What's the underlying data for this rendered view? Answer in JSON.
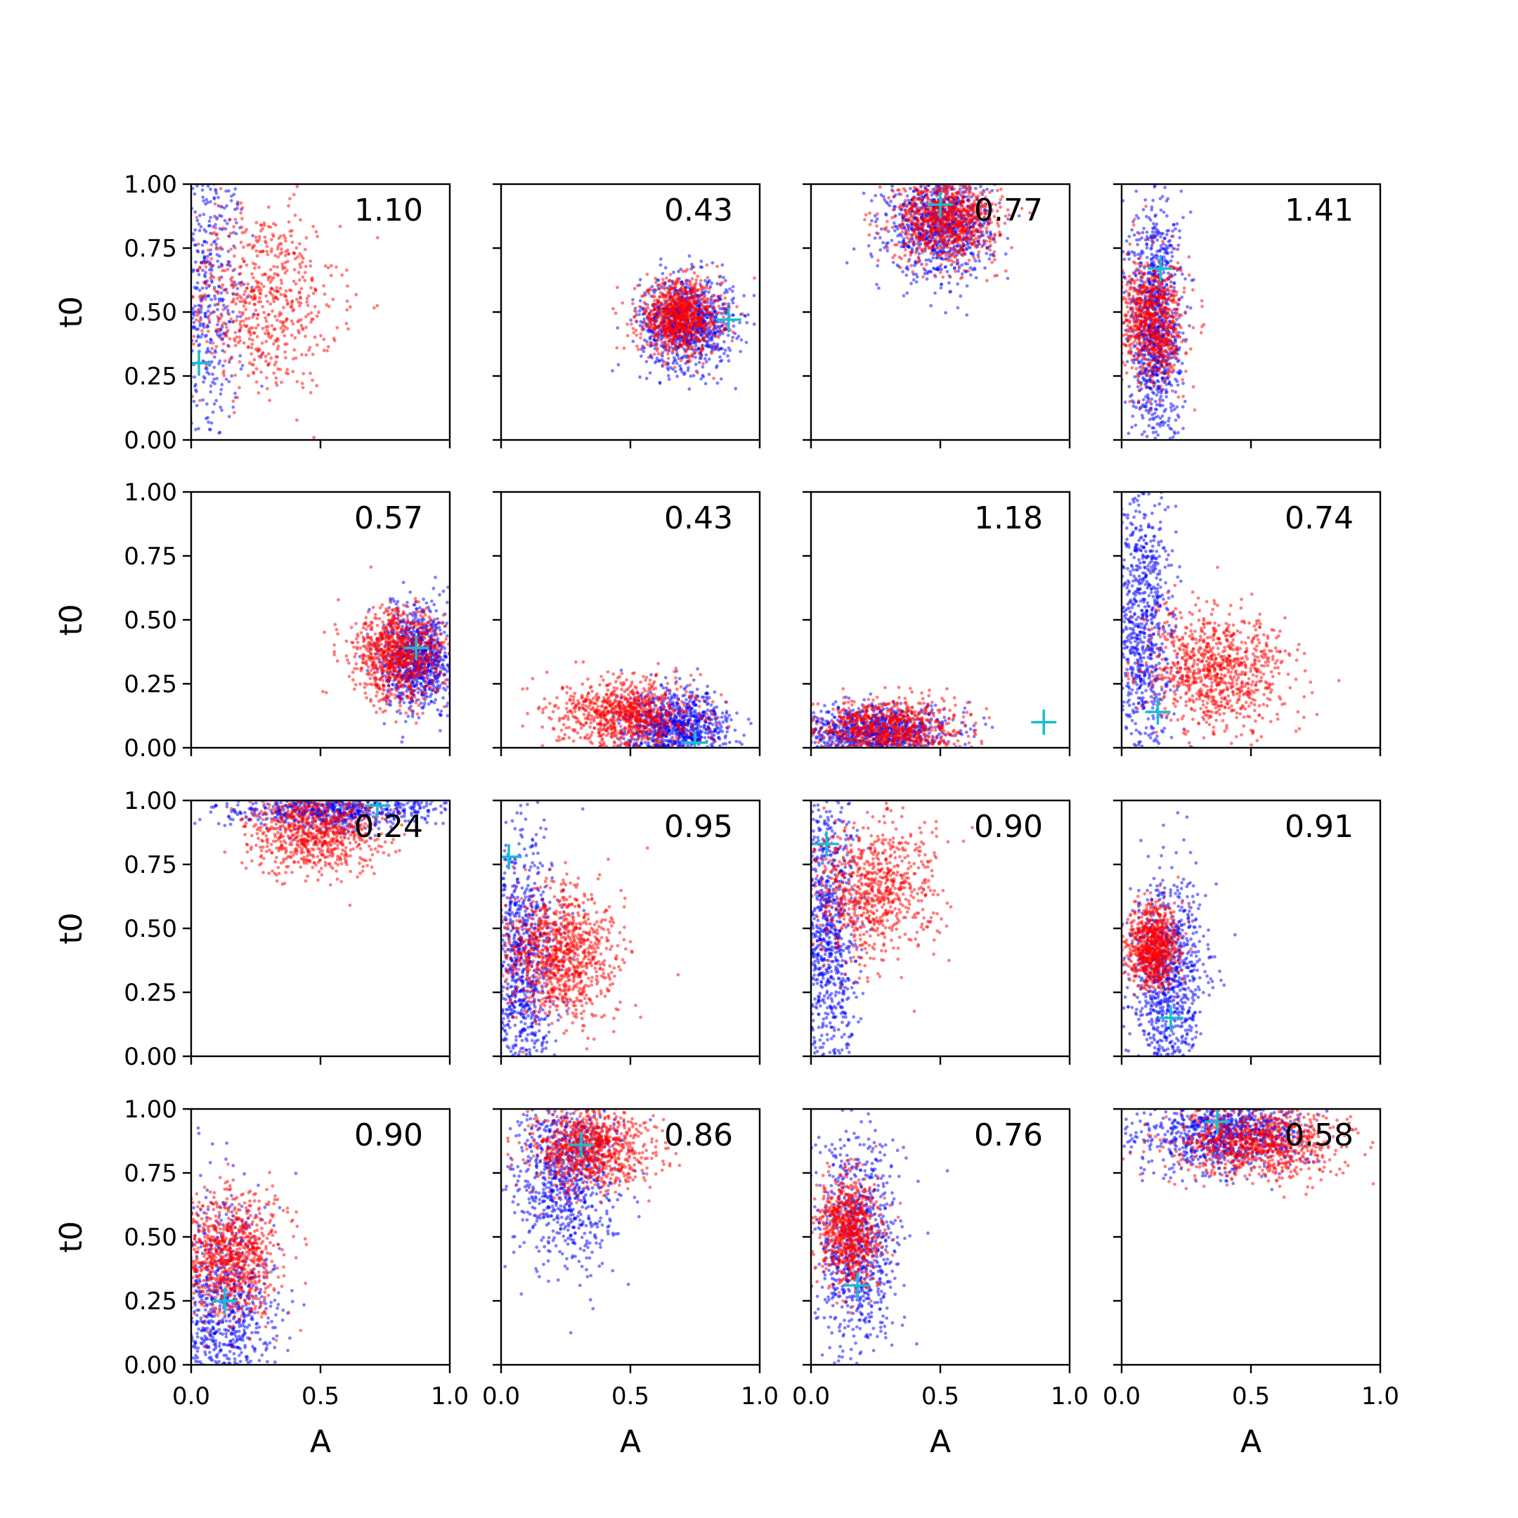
{
  "figure": {
    "x_axis_label": "A",
    "y_axis_label": "t0",
    "colors": {
      "series_1": "#0000ff",
      "series_2": "#ff0000",
      "marker": "#17becf"
    }
  },
  "chart_data": [
    {
      "type": "scatter",
      "value_label": "1.10",
      "marker": {
        "x": 0.03,
        "y": 0.3
      },
      "blue": {
        "cx": 0.05,
        "cy": 0.55,
        "sx": 0.08,
        "sy": 0.3,
        "n": 520
      },
      "red": {
        "cx": 0.27,
        "cy": 0.55,
        "sx": 0.15,
        "sy": 0.18,
        "n": 650
      },
      "xlim": [
        0,
        1
      ],
      "ylim": [
        0,
        1
      ]
    },
    {
      "type": "scatter",
      "value_label": "0.43",
      "marker": {
        "x": 0.88,
        "y": 0.47
      },
      "blue": {
        "cx": 0.72,
        "cy": 0.46,
        "sx": 0.09,
        "sy": 0.09,
        "n": 900
      },
      "red": {
        "cx": 0.69,
        "cy": 0.48,
        "sx": 0.08,
        "sy": 0.07,
        "n": 900
      },
      "xlim": [
        0,
        1
      ],
      "ylim": [
        0,
        1
      ]
    },
    {
      "type": "scatter",
      "value_label": "0.77",
      "marker": {
        "x": 0.5,
        "y": 0.92
      },
      "blue": {
        "cx": 0.5,
        "cy": 0.84,
        "sx": 0.1,
        "sy": 0.1,
        "n": 900
      },
      "red": {
        "cx": 0.52,
        "cy": 0.86,
        "sx": 0.1,
        "sy": 0.08,
        "n": 900
      },
      "xlim": [
        0,
        1
      ],
      "ylim": [
        0,
        1
      ]
    },
    {
      "type": "scatter",
      "value_label": "1.41",
      "marker": {
        "x": 0.15,
        "y": 0.67
      },
      "blue": {
        "cx": 0.13,
        "cy": 0.45,
        "sx": 0.05,
        "sy": 0.24,
        "n": 1000
      },
      "red": {
        "cx": 0.12,
        "cy": 0.46,
        "sx": 0.06,
        "sy": 0.12,
        "n": 800
      },
      "xlim": [
        0,
        1
      ],
      "ylim": [
        0,
        1
      ]
    },
    {
      "type": "scatter",
      "value_label": "0.57",
      "marker": {
        "x": 0.87,
        "y": 0.39
      },
      "blue": {
        "cx": 0.88,
        "cy": 0.35,
        "sx": 0.07,
        "sy": 0.1,
        "n": 900
      },
      "red": {
        "cx": 0.8,
        "cy": 0.36,
        "sx": 0.09,
        "sy": 0.09,
        "n": 900
      },
      "xlim": [
        0,
        1
      ],
      "ylim": [
        0,
        1
      ]
    },
    {
      "type": "scatter",
      "value_label": "0.43",
      "marker": {
        "x": 0.75,
        "y": 0.02
      },
      "blue": {
        "cx": 0.68,
        "cy": 0.08,
        "sx": 0.1,
        "sy": 0.07,
        "n": 900
      },
      "red": {
        "cx": 0.49,
        "cy": 0.13,
        "sx": 0.13,
        "sy": 0.07,
        "n": 900
      },
      "xlim": [
        0,
        1
      ],
      "ylim": [
        0,
        1
      ]
    },
    {
      "type": "scatter",
      "value_label": "1.18",
      "marker": {
        "x": 0.9,
        "y": 0.1
      },
      "blue": {
        "cx": 0.25,
        "cy": 0.06,
        "sx": 0.15,
        "sy": 0.05,
        "n": 900
      },
      "red": {
        "cx": 0.3,
        "cy": 0.07,
        "sx": 0.14,
        "sy": 0.06,
        "n": 900
      },
      "xlim": [
        0,
        1
      ],
      "ylim": [
        0,
        1
      ]
    },
    {
      "type": "scatter",
      "value_label": "0.74",
      "marker": {
        "x": 0.14,
        "y": 0.14
      },
      "blue": {
        "cx": 0.08,
        "cy": 0.45,
        "sx": 0.06,
        "sy": 0.3,
        "n": 800
      },
      "red": {
        "cx": 0.37,
        "cy": 0.3,
        "sx": 0.14,
        "sy": 0.12,
        "n": 900
      },
      "xlim": [
        0,
        1
      ],
      "ylim": [
        0,
        1
      ]
    },
    {
      "type": "scatter",
      "value_label": "0.24",
      "marker": {
        "x": 0.72,
        "y": 0.98
      },
      "blue": {
        "cx": 0.55,
        "cy": 0.97,
        "sx": 0.2,
        "sy": 0.04,
        "n": 800
      },
      "red": {
        "cx": 0.48,
        "cy": 0.88,
        "sx": 0.13,
        "sy": 0.08,
        "n": 800
      },
      "xlim": [
        0,
        1
      ],
      "ylim": [
        0,
        1
      ]
    },
    {
      "type": "scatter",
      "value_label": "0.95",
      "marker": {
        "x": 0.03,
        "y": 0.78
      },
      "blue": {
        "cx": 0.08,
        "cy": 0.35,
        "sx": 0.07,
        "sy": 0.26,
        "n": 900
      },
      "red": {
        "cx": 0.22,
        "cy": 0.4,
        "sx": 0.11,
        "sy": 0.13,
        "n": 1000
      },
      "xlim": [
        0,
        1
      ],
      "ylim": [
        0,
        1
      ]
    },
    {
      "type": "scatter",
      "value_label": "0.90",
      "marker": {
        "x": 0.06,
        "y": 0.83
      },
      "blue": {
        "cx": 0.06,
        "cy": 0.45,
        "sx": 0.06,
        "sy": 0.3,
        "n": 900
      },
      "red": {
        "cx": 0.23,
        "cy": 0.64,
        "sx": 0.12,
        "sy": 0.14,
        "n": 800
      },
      "xlim": [
        0,
        1
      ],
      "ylim": [
        0,
        1
      ]
    },
    {
      "type": "scatter",
      "value_label": "0.91",
      "marker": {
        "x": 0.19,
        "y": 0.15
      },
      "blue": {
        "cx": 0.18,
        "cy": 0.3,
        "sx": 0.07,
        "sy": 0.2,
        "n": 900
      },
      "red": {
        "cx": 0.12,
        "cy": 0.43,
        "sx": 0.05,
        "sy": 0.08,
        "n": 800
      },
      "xlim": [
        0,
        1
      ],
      "ylim": [
        0,
        1
      ]
    },
    {
      "type": "scatter",
      "value_label": "0.90",
      "marker": {
        "x": 0.13,
        "y": 0.25
      },
      "blue": {
        "cx": 0.12,
        "cy": 0.2,
        "sx": 0.1,
        "sy": 0.22,
        "n": 900
      },
      "red": {
        "cx": 0.15,
        "cy": 0.43,
        "sx": 0.1,
        "sy": 0.12,
        "n": 900
      },
      "xlim": [
        0,
        1
      ],
      "ylim": [
        0,
        1
      ]
    },
    {
      "type": "scatter",
      "value_label": "0.86",
      "marker": {
        "x": 0.31,
        "y": 0.86
      },
      "blue": {
        "cx": 0.25,
        "cy": 0.75,
        "sx": 0.1,
        "sy": 0.18,
        "n": 900
      },
      "red": {
        "cx": 0.35,
        "cy": 0.85,
        "sx": 0.11,
        "sy": 0.09,
        "n": 900
      },
      "xlim": [
        0,
        1
      ],
      "ylim": [
        0,
        1
      ]
    },
    {
      "type": "scatter",
      "value_label": "0.76",
      "marker": {
        "x": 0.18,
        "y": 0.31
      },
      "blue": {
        "cx": 0.18,
        "cy": 0.45,
        "sx": 0.08,
        "sy": 0.2,
        "n": 800
      },
      "red": {
        "cx": 0.15,
        "cy": 0.52,
        "sx": 0.06,
        "sy": 0.11,
        "n": 800
      },
      "xlim": [
        0,
        1
      ],
      "ylim": [
        0,
        1
      ]
    },
    {
      "type": "scatter",
      "value_label": "0.58",
      "marker": {
        "x": 0.37,
        "y": 0.95
      },
      "blue": {
        "cx": 0.4,
        "cy": 0.9,
        "sx": 0.16,
        "sy": 0.07,
        "n": 900
      },
      "red": {
        "cx": 0.52,
        "cy": 0.87,
        "sx": 0.16,
        "sy": 0.07,
        "n": 900
      },
      "xlim": [
        0,
        1
      ],
      "ylim": [
        0,
        1
      ]
    }
  ],
  "axes": {
    "x_ticks": [
      "0.0",
      "0.5",
      "1.0"
    ],
    "y_ticks": [
      "0.00",
      "0.25",
      "0.50",
      "0.75",
      "1.00"
    ]
  }
}
